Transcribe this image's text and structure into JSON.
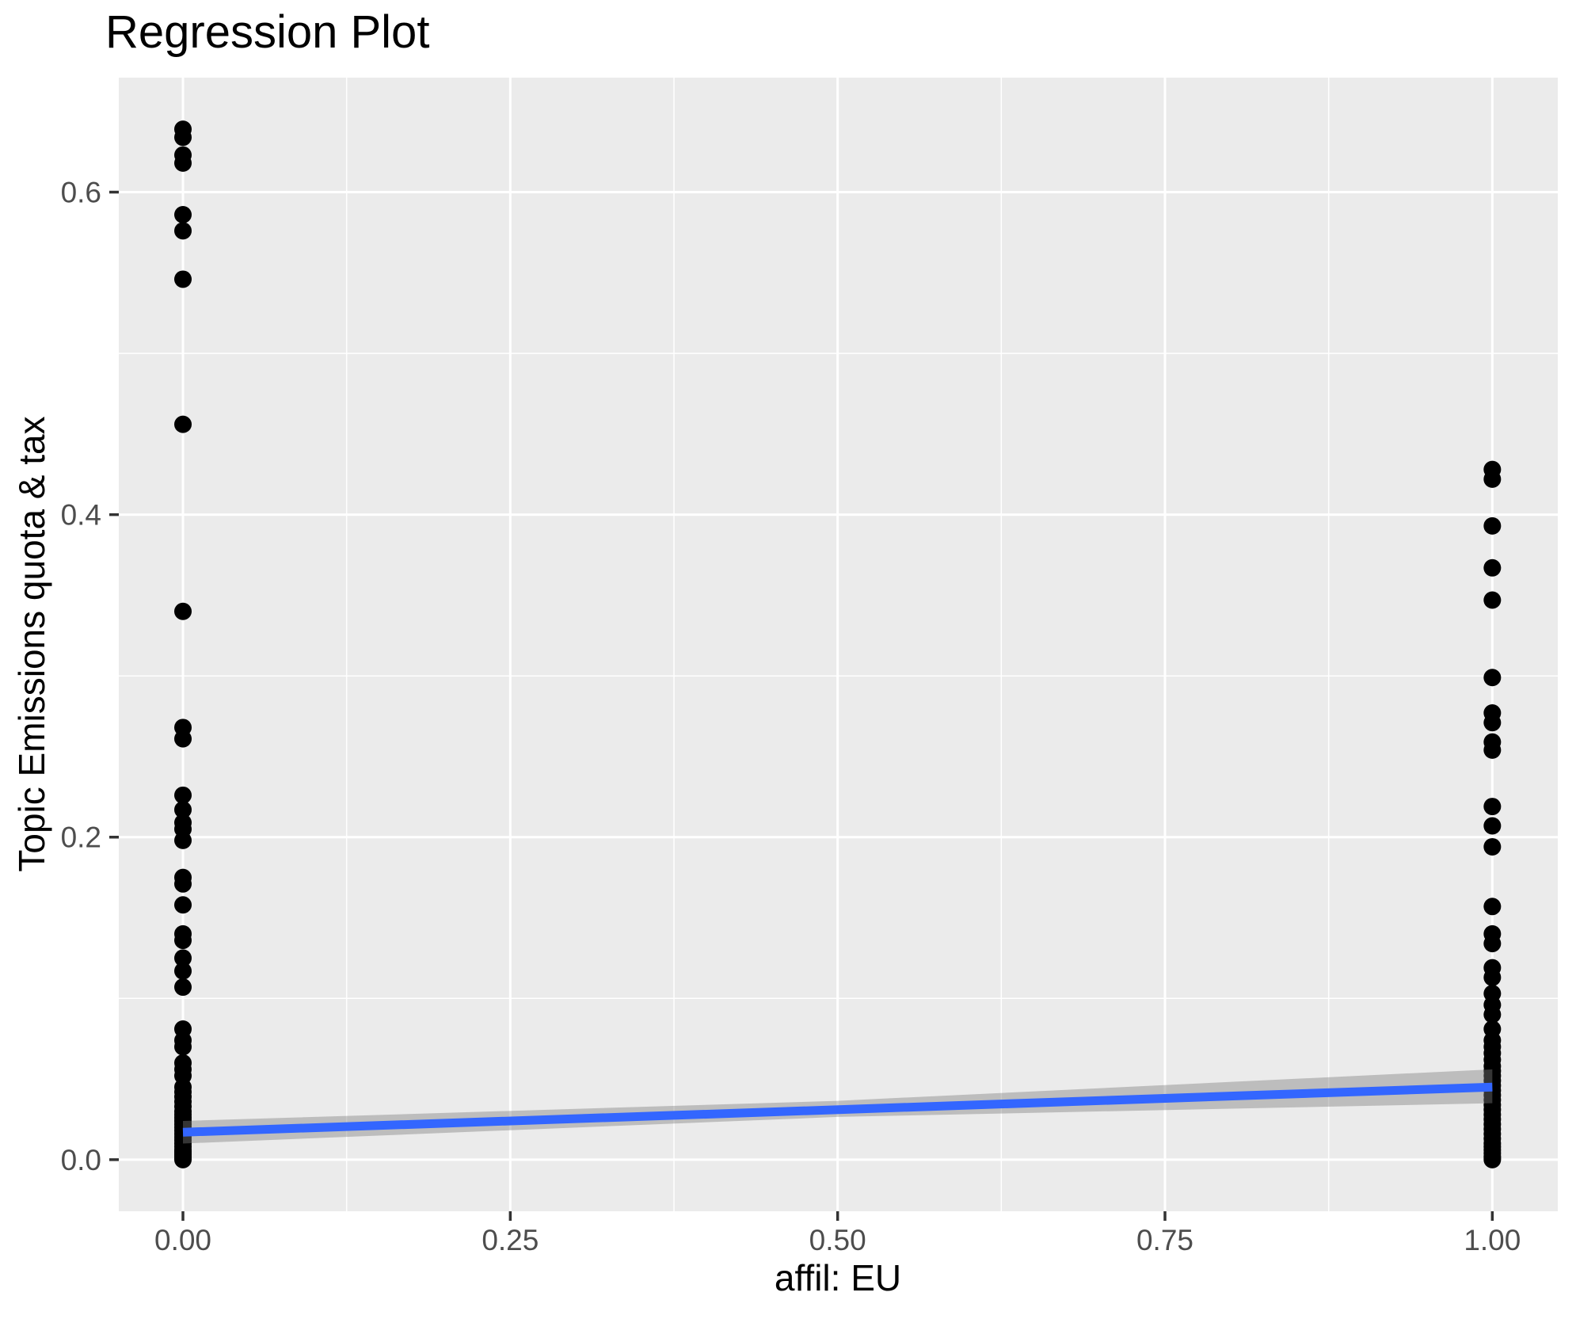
{
  "chart_data": {
    "type": "scatter",
    "title": "Regression Plot",
    "xlabel": "affil: EU",
    "ylabel": "Topic Emissions quota & tax",
    "xlim": [
      -0.049,
      1.05
    ],
    "ylim": [
      -0.032,
      0.671
    ],
    "grid": true,
    "legend": false,
    "x_ticks": {
      "values": [
        0,
        0.25,
        0.5,
        0.75,
        1.0
      ],
      "labels": [
        "0.00",
        "0.25",
        "0.50",
        "0.75",
        "1.00"
      ]
    },
    "y_ticks": {
      "values": [
        0.0,
        0.2,
        0.4,
        0.6
      ],
      "labels": [
        "0.0",
        "0.2",
        "0.4",
        "0.6"
      ]
    },
    "x_minor": [
      0.125,
      0.375,
      0.625,
      0.875
    ],
    "y_minor": [
      0.1,
      0.3,
      0.5
    ],
    "series": [
      {
        "name": "observations at affil EU = 0",
        "x": 0,
        "values": [
          0.639,
          0.634,
          0.623,
          0.618,
          0.586,
          0.576,
          0.546,
          0.456,
          0.34,
          0.268,
          0.261,
          0.226,
          0.217,
          0.209,
          0.205,
          0.198,
          0.175,
          0.171,
          0.158,
          0.14,
          0.136,
          0.125,
          0.117,
          0.107,
          0.081,
          0.074,
          0.07,
          0.06,
          0.056,
          0.052,
          0.045,
          0.042,
          0.039,
          0.036,
          0.033,
          0.03,
          0.028,
          0.026,
          0.024,
          0.022,
          0.02,
          0.018,
          0.016,
          0.014,
          0.012,
          0.01,
          0.008,
          0.006,
          0.005,
          0.004,
          0.003,
          0.002,
          0.001,
          0.0
        ]
      },
      {
        "name": "observations at affil EU = 1",
        "x": 1,
        "values": [
          0.428,
          0.422,
          0.393,
          0.367,
          0.347,
          0.299,
          0.277,
          0.271,
          0.259,
          0.254,
          0.219,
          0.207,
          0.194,
          0.157,
          0.14,
          0.134,
          0.119,
          0.113,
          0.103,
          0.096,
          0.09,
          0.081,
          0.074,
          0.07,
          0.066,
          0.062,
          0.058,
          0.055,
          0.052,
          0.049,
          0.046,
          0.043,
          0.04,
          0.037,
          0.034,
          0.031,
          0.028,
          0.025,
          0.022,
          0.019,
          0.016,
          0.013,
          0.01,
          0.008,
          0.006,
          0.004,
          0.002,
          0.001,
          0.0
        ]
      }
    ],
    "regression_line": {
      "x": [
        0,
        1
      ],
      "y": [
        0.017,
        0.045
      ]
    },
    "confidence_band": {
      "x": [
        0,
        0.5,
        1
      ],
      "upper": [
        0.024,
        0.0365,
        0.056
      ],
      "lower": [
        0.01,
        0.0265,
        0.035
      ]
    },
    "point_radius": 11,
    "colors": {
      "panel_background": "#EBEBEB",
      "grid": "#FFFFFF",
      "points": "#000000",
      "regression_line": "#3366FF",
      "confidence_band": "#7F7F7F",
      "confidence_band_opacity": 0.42,
      "tick_marks": "#333333",
      "tick_labels": "#4D4D4D",
      "text": "#000000"
    }
  }
}
